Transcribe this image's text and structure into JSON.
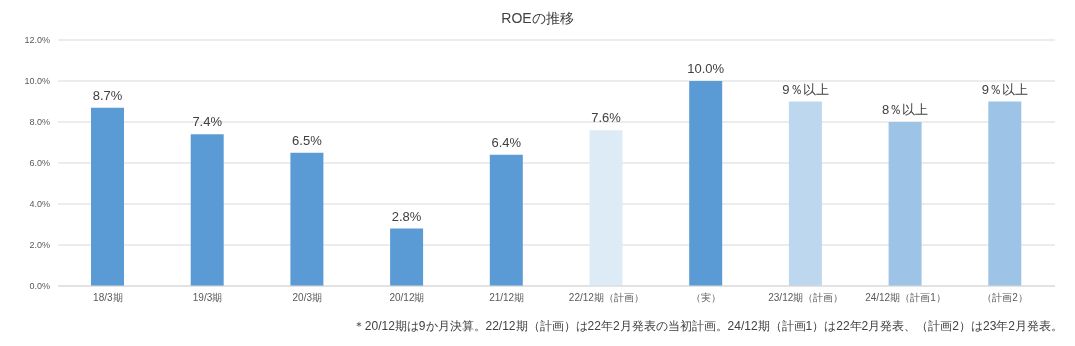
{
  "chart_data": {
    "type": "bar",
    "title": "ROEの推移",
    "categories": [
      "18/3期",
      "19/3期",
      "20/3期",
      "20/12期",
      "21/12期",
      "22/12期（計画）",
      "（実）",
      "23/12期（計画）",
      "24/12期（計画1）",
      "（計画2）"
    ],
    "values": [
      8.7,
      7.4,
      6.5,
      2.8,
      6.4,
      7.6,
      10.0,
      9,
      8,
      9
    ],
    "value_labels": [
      "8.7%",
      "7.4%",
      "6.5%",
      "2.8%",
      "6.4%",
      "7.6%",
      "10.0%",
      "9％以上",
      "8％以上",
      "9％以上"
    ],
    "colors": [
      "#5b9bd5",
      "#5b9bd5",
      "#5b9bd5",
      "#5b9bd5",
      "#5b9bd5",
      "#ddebf7",
      "#5b9bd5",
      "#bdd7ee",
      "#9dc3e6",
      "#9dc3e6"
    ],
    "ylim": [
      0,
      12
    ],
    "yticks": [
      {
        "value": 0,
        "label": "0.0%"
      },
      {
        "value": 2,
        "label": "2.0%"
      },
      {
        "value": 4,
        "label": "4.0%"
      },
      {
        "value": 6,
        "label": "6.0%"
      },
      {
        "value": 8,
        "label": "8.0%"
      },
      {
        "value": 10,
        "label": "10.0%"
      },
      {
        "value": 12,
        "label": "12.0%"
      }
    ],
    "grid": "y",
    "annotations": [
      "＊20/12期は9か月決算。22/12期（計画）は22年2月発表の当初計画。24/12期（計画1）は22年2月発表、（計画2）は23年2月発表。"
    ]
  }
}
